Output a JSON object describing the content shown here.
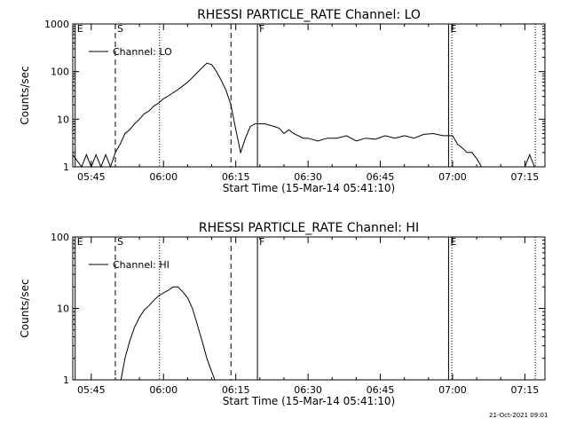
{
  "footer": {
    "date": "21-Oct-2021 09:01"
  },
  "chart_data": [
    {
      "type": "line",
      "title": "RHESSI PARTICLE_RATE Channel: LO",
      "xlabel": "Start Time (15-Mar-14 05:41:10)",
      "ylabel": "Counts/sec",
      "yscale": "log",
      "ylim": [
        1,
        1000
      ],
      "xlim_minutes_after_start": [
        0,
        98
      ],
      "x_ticks": [
        "05:45",
        "06:00",
        "06:15",
        "06:30",
        "06:45",
        "07:00",
        "07:15"
      ],
      "y_ticks": [
        "1",
        "10",
        "100",
        "1000"
      ],
      "legend": "Channel: LO",
      "legend_position": "top-left",
      "markers": [
        {
          "label": "E",
          "x": "05:41:40",
          "style": "solid"
        },
        {
          "label": "S",
          "x": "05:50:00",
          "style": "dashed"
        },
        {
          "label": "",
          "x": "05:59:10",
          "style": "dotted"
        },
        {
          "label": "",
          "x": "06:14:00",
          "style": "dashed"
        },
        {
          "label": "F",
          "x": "06:19:30",
          "style": "solid"
        },
        {
          "label": "E",
          "x": "06:59:10",
          "style": "solid"
        },
        {
          "label": "",
          "x": "06:59:50",
          "style": "dotted"
        },
        {
          "label": "",
          "x": "07:17:10",
          "style": "dotted"
        }
      ],
      "series": [
        {
          "x": [
            "05:41:10",
            "05:43",
            "05:44",
            "05:45",
            "05:46",
            "05:47",
            "05:48",
            "05:49",
            "05:50",
            "05:51",
            "05:52",
            "05:53",
            "05:54",
            "05:55",
            "05:56",
            "05:57",
            "05:58",
            "05:59",
            "06:00",
            "06:01",
            "06:02",
            "06:03",
            "06:04",
            "06:05",
            "06:06",
            "06:07",
            "06:08",
            "06:09",
            "06:10",
            "06:11",
            "06:12",
            "06:13",
            "06:14",
            "06:15",
            "06:16",
            "06:17",
            "06:18",
            "06:19",
            "06:20",
            "06:21",
            "06:22",
            "06:23",
            "06:24",
            "06:25",
            "06:26",
            "06:27",
            "06:28",
            "06:29",
            "06:30",
            "06:32",
            "06:34",
            "06:36",
            "06:38",
            "06:40",
            "06:42",
            "06:44",
            "06:46",
            "06:48",
            "06:50",
            "06:52",
            "06:54",
            "06:56",
            "06:58",
            "07:00",
            "07:01",
            "07:02",
            "07:03",
            "07:04",
            "07:05",
            "07:06",
            "07:08",
            "07:10",
            "07:12",
            "07:14",
            "07:15",
            "07:16",
            "07:17"
          ],
          "y": [
            1.8,
            1,
            1.8,
            1,
            1.8,
            1,
            1.8,
            1,
            2,
            3,
            5,
            6,
            8,
            10,
            13,
            15,
            19,
            22,
            27,
            31,
            36,
            42,
            50,
            60,
            75,
            95,
            120,
            150,
            140,
            100,
            65,
            40,
            20,
            6,
            2,
            4,
            7,
            8,
            8,
            8,
            7.5,
            7,
            6.5,
            5,
            6,
            5,
            4.5,
            4,
            4,
            3.5,
            4,
            4,
            4.5,
            3.5,
            4,
            3.8,
            4.5,
            4,
            4.5,
            4,
            4.8,
            5,
            4.5,
            4.5,
            3,
            2.5,
            2,
            2,
            1.5,
            1,
            1,
            1,
            1,
            1,
            1,
            1.8,
            1
          ]
        }
      ]
    },
    {
      "type": "line",
      "title": "RHESSI PARTICLE_RATE Channel: HI",
      "xlabel": "Start Time (15-Mar-14 05:41:10)",
      "ylabel": "Counts/sec",
      "yscale": "log",
      "ylim": [
        1,
        100
      ],
      "xlim_minutes_after_start": [
        0,
        98
      ],
      "x_ticks": [
        "05:45",
        "06:00",
        "06:15",
        "06:30",
        "06:45",
        "07:00",
        "07:15"
      ],
      "y_ticks": [
        "1",
        "10",
        "100"
      ],
      "legend": "Channel: HI",
      "legend_position": "top-left",
      "markers": [
        {
          "label": "E",
          "x": "05:41:40",
          "style": "solid"
        },
        {
          "label": "S",
          "x": "05:50:00",
          "style": "dashed"
        },
        {
          "label": "",
          "x": "05:59:10",
          "style": "dotted"
        },
        {
          "label": "",
          "x": "06:14:00",
          "style": "dashed"
        },
        {
          "label": "F",
          "x": "06:19:30",
          "style": "solid"
        },
        {
          "label": "E",
          "x": "06:59:10",
          "style": "solid"
        },
        {
          "label": "",
          "x": "06:59:50",
          "style": "dotted"
        },
        {
          "label": "",
          "x": "07:17:10",
          "style": "dotted"
        }
      ],
      "series": [
        {
          "x": [
            "05:51:10",
            "05:52",
            "05:53",
            "05:54",
            "05:55",
            "05:56",
            "05:57",
            "05:58",
            "05:59",
            "06:00",
            "06:01",
            "06:02",
            "06:03",
            "06:04",
            "06:05",
            "06:06",
            "06:07",
            "06:08",
            "06:09",
            "06:10",
            "06:10:40"
          ],
          "y": [
            1,
            2,
            3.5,
            5.5,
            7.5,
            9.5,
            11,
            13,
            15,
            16.5,
            18,
            20,
            20,
            17,
            14,
            10,
            6,
            3.5,
            2,
            1.3,
            1
          ]
        }
      ]
    }
  ]
}
